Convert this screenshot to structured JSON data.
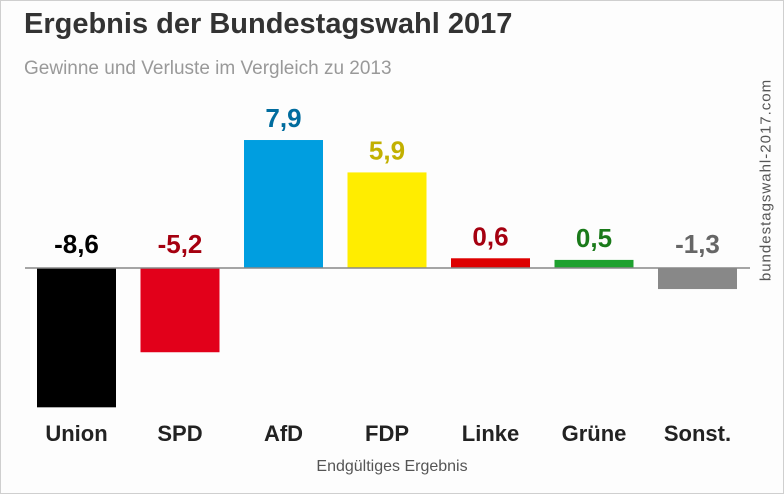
{
  "title": "Ergebnis der Bundestagswahl 2017",
  "subtitle": "Gewinne und Verluste im Vergleich zu 2013",
  "source": "bundestagswahl-2017.com",
  "footer": "Endgültiges Ergebnis",
  "chart_data": {
    "type": "bar",
    "title": "Ergebnis der Bundestagswahl 2017",
    "subtitle": "Gewinne und Verluste im Vergleich zu 2013",
    "xlabel": "Endgültiges Ergebnis",
    "ylabel": "",
    "categories": [
      "Union",
      "SPD",
      "AfD",
      "FDP",
      "Linke",
      "Grüne",
      "Sonst."
    ],
    "values": [
      -8.6,
      -5.2,
      7.9,
      5.9,
      0.6,
      0.5,
      -1.3
    ],
    "value_labels": [
      "-8,6",
      "-5,2",
      "7,9",
      "5,9",
      "0,6",
      "0,5",
      "-1,3"
    ],
    "bar_colors": [
      "#000000",
      "#e2001a",
      "#009ee0",
      "#ffed00",
      "#dd0000",
      "#1ea12f",
      "#888888"
    ],
    "label_colors": [
      "#000000",
      "#a50010",
      "#006c9e",
      "#c2b000",
      "#a50010",
      "#1a7a1a",
      "#666666"
    ],
    "ylim": [
      -9,
      8.5
    ],
    "grid": false
  }
}
